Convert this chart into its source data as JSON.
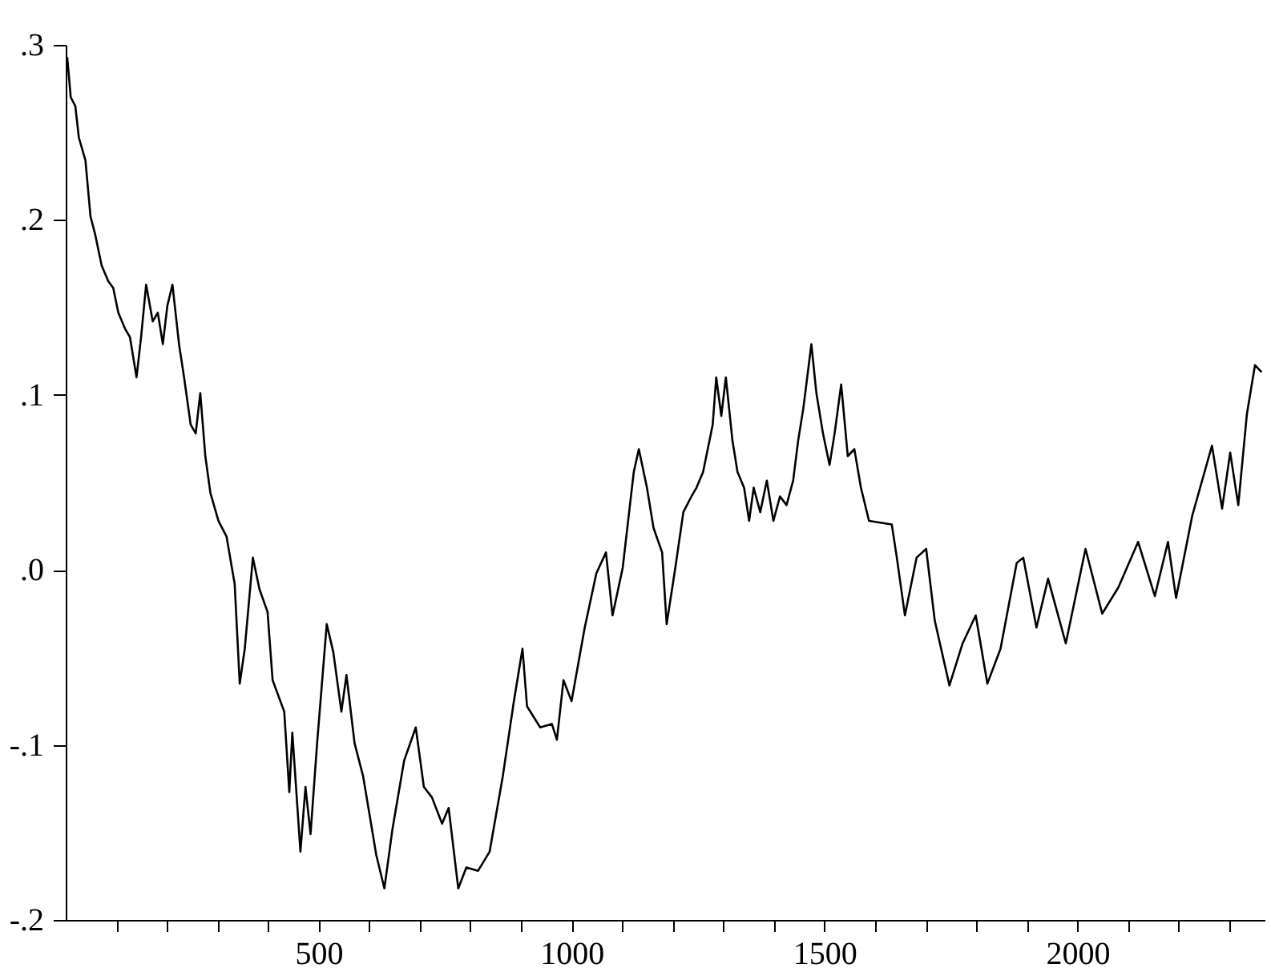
{
  "chart_data": {
    "type": "line",
    "x": [
      3,
      10,
      19,
      26,
      39,
      49,
      58,
      71,
      84,
      94,
      104,
      117,
      127,
      140,
      149,
      159,
      172,
      182,
      192,
      201,
      211,
      224,
      234,
      247,
      257,
      266,
      276,
      286,
      302,
      318,
      334,
      344,
      354,
      370,
      383,
      399,
      409,
      432,
      442,
      448,
      464,
      474,
      484,
      497,
      516,
      529,
      545,
      555,
      571,
      588,
      614,
      630,
      646,
      669,
      692,
      708,
      724,
      744,
      757,
      776,
      792,
      815,
      838,
      864,
      886,
      903,
      912,
      938,
      961,
      971,
      984,
      1000,
      1026,
      1049,
      1068,
      1081,
      1101,
      1123,
      1133,
      1149,
      1162,
      1179,
      1188,
      1205,
      1221,
      1237,
      1247,
      1260,
      1279,
      1286,
      1296,
      1305,
      1318,
      1328,
      1341,
      1351,
      1360,
      1373,
      1386,
      1399,
      1412,
      1425,
      1438,
      1448,
      1458,
      1468,
      1474,
      1484,
      1497,
      1510,
      1520,
      1533,
      1546,
      1559,
      1572,
      1588,
      1633,
      1643,
      1659,
      1682,
      1701,
      1718,
      1747,
      1773,
      1799,
      1822,
      1848,
      1880,
      1893,
      1919,
      1942,
      1977,
      2016,
      2049,
      2081,
      2120,
      2153,
      2179,
      2195,
      2227,
      2266,
      2286,
      2302,
      2318,
      2335,
      2351,
      2364
    ],
    "series": [
      {
        "color": "#000000",
        "values": [
          0.293,
          0.27,
          0.265,
          0.247,
          0.234,
          0.202,
          0.192,
          0.174,
          0.165,
          0.161,
          0.147,
          0.138,
          0.133,
          0.11,
          0.133,
          0.163,
          0.142,
          0.147,
          0.129,
          0.151,
          0.163,
          0.129,
          0.11,
          0.083,
          0.078,
          0.101,
          0.065,
          0.044,
          0.028,
          0.019,
          -0.008,
          -0.065,
          -0.045,
          0.007,
          -0.011,
          -0.024,
          -0.063,
          -0.081,
          -0.127,
          -0.093,
          -0.161,
          -0.124,
          -0.151,
          -0.099,
          -0.031,
          -0.047,
          -0.081,
          -0.06,
          -0.099,
          -0.118,
          -0.163,
          -0.182,
          -0.148,
          -0.109,
          -0.09,
          -0.124,
          -0.13,
          -0.145,
          -0.136,
          -0.182,
          -0.17,
          -0.172,
          -0.161,
          -0.118,
          -0.075,
          -0.045,
          -0.078,
          -0.09,
          -0.088,
          -0.097,
          -0.063,
          -0.075,
          -0.033,
          -0.002,
          0.01,
          -0.026,
          0.001,
          0.056,
          0.069,
          0.047,
          0.024,
          0.01,
          -0.031,
          0.001,
          0.033,
          0.042,
          0.047,
          0.056,
          0.083,
          0.11,
          0.088,
          0.11,
          0.074,
          0.056,
          0.047,
          0.028,
          0.047,
          0.033,
          0.051,
          0.028,
          0.042,
          0.037,
          0.051,
          0.074,
          0.092,
          0.115,
          0.129,
          0.101,
          0.078,
          0.06,
          0.078,
          0.106,
          0.065,
          0.069,
          0.047,
          0.028,
          0.026,
          0.007,
          -0.026,
          0.007,
          0.012,
          -0.029,
          -0.066,
          -0.042,
          -0.026,
          -0.065,
          -0.045,
          0.004,
          0.007,
          -0.033,
          -0.005,
          -0.042,
          0.012,
          -0.025,
          -0.01,
          0.016,
          -0.015,
          0.016,
          -0.016,
          0.031,
          0.071,
          0.035,
          0.067,
          0.037,
          0.089,
          0.117,
          0.113
        ]
      }
    ],
    "xlim": [
      0,
      2370
    ],
    "xticks": [
      {
        "value": 100,
        "label": null
      },
      {
        "value": 200,
        "label": null
      },
      {
        "value": 300,
        "label": null
      },
      {
        "value": 400,
        "label": null
      },
      500,
      {
        "value": 600,
        "label": null
      },
      {
        "value": 700,
        "label": null
      },
      {
        "value": 800,
        "label": null
      },
      {
        "value": 900,
        "label": null
      },
      1000,
      {
        "value": 1100,
        "label": null
      },
      {
        "value": 1200,
        "label": null
      },
      {
        "value": 1300,
        "label": null
      },
      {
        "value": 1400,
        "label": null
      },
      1500,
      {
        "value": 1600,
        "label": null
      },
      {
        "value": 1700,
        "label": null
      },
      {
        "value": 1800,
        "label": null
      },
      {
        "value": 1900,
        "label": null
      },
      2000,
      {
        "value": 2100,
        "label": null
      },
      {
        "value": 2200,
        "label": null
      },
      {
        "value": 2300,
        "label": null
      }
    ],
    "ylim": [
      -0.2,
      0.3
    ],
    "yticks": [
      {
        "value": -0.2,
        "label": "-.2"
      },
      {
        "value": -0.1,
        "label": "-.1"
      },
      {
        "value": 0,
        "label": ".0"
      },
      {
        "value": 0.1,
        "label": ".1"
      },
      {
        "value": 0.2,
        "label": ".2"
      },
      {
        "value": 0.3,
        "label": ".3"
      }
    ],
    "grid": false,
    "marker": "none",
    "line_style": "solid"
  }
}
